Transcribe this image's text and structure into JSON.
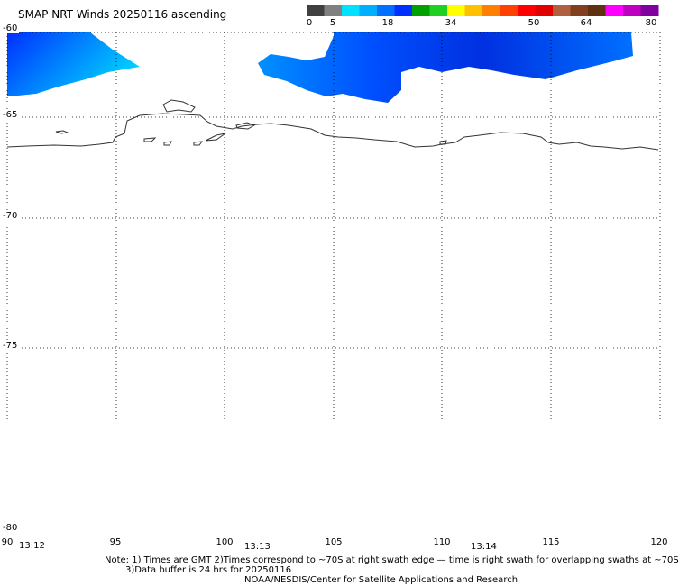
{
  "title": "SMAP NRT Winds 20250116 ascending",
  "colorbar": {
    "tick_labels": [
      "0",
      "5",
      "18",
      "34",
      "50",
      "64",
      "80"
    ],
    "colors": [
      "#404040",
      "#808080",
      "#00e0ff",
      "#00b0ff",
      "#0070ff",
      "#0030ff",
      "#00a000",
      "#20d020",
      "#ffff00",
      "#ffc000",
      "#ff8000",
      "#ff4000",
      "#ff0000",
      "#e00000",
      "#b06040",
      "#804020",
      "#603010",
      "#ff00ff",
      "#c000c0",
      "#8000a0"
    ]
  },
  "map": {
    "lon_range": [
      90,
      120
    ],
    "lat_range": [
      -60,
      -80
    ],
    "lat_labels": [
      "-60",
      "-65",
      "-70",
      "-75",
      "-80"
    ],
    "lon_labels": [
      "90",
      "95",
      "100",
      "105",
      "110",
      "115",
      "120"
    ],
    "wind_color": "#0050ff",
    "coast_color": "#333333",
    "grid": true
  },
  "times": [
    "13:12",
    "13:13",
    "13:14"
  ],
  "notes": {
    "line1": "Note: 1) Times are GMT 2)Times correspond to ~70S at right swath edge — time is right swath for overlapping swaths at ~70S",
    "line2": "3)Data buffer is 24 hrs for 20250116",
    "line3": "NOAA/NESDIS/Center for Satellite Applications and Research"
  }
}
